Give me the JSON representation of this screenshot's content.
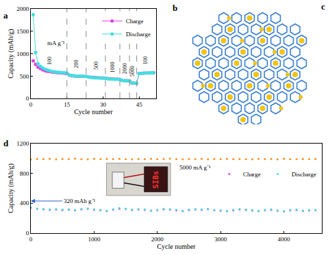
{
  "diagram": {
    "panel": "b"
  },
  "cropped_panel": {
    "panel": "c"
  },
  "chart_data": [
    {
      "panel": "a",
      "type": "line",
      "x_label": "Cycle number",
      "y_label": "Capacity (mAh/g)",
      "x": [
        1,
        2,
        3,
        4,
        5,
        6,
        7,
        8,
        9,
        10,
        11,
        12,
        13,
        14,
        15,
        16,
        17,
        18,
        19,
        20,
        21,
        22,
        23,
        24,
        25,
        26,
        27,
        28,
        29,
        30,
        31,
        32,
        33,
        34,
        35,
        36,
        37,
        38,
        39,
        40,
        41,
        42,
        43,
        44,
        45,
        46,
        47,
        48,
        49,
        50,
        51
      ],
      "series": [
        {
          "name": "Charge",
          "color": "#e040e0",
          "marker": "circle",
          "values": [
            840,
            760,
            700,
            670,
            640,
            620,
            610,
            600,
            590,
            585,
            580,
            575,
            570,
            565,
            560,
            520,
            510,
            505,
            500,
            500,
            498,
            495,
            495,
            480,
            475,
            470,
            468,
            465,
            462,
            460,
            458,
            445,
            440,
            438,
            435,
            432,
            430,
            405,
            400,
            398,
            395,
            350,
            345,
            340,
            560,
            565,
            568,
            570,
            572,
            575,
            578
          ]
        },
        {
          "name": "Discharge",
          "color": "#40e0e0",
          "marker": "circle",
          "values": [
            1870,
            1030,
            780,
            720,
            680,
            655,
            635,
            620,
            605,
            598,
            590,
            585,
            580,
            575,
            570,
            525,
            515,
            508,
            503,
            502,
            500,
            497,
            496,
            480,
            470,
            465,
            462,
            460,
            458,
            455,
            453,
            440,
            436,
            433,
            430,
            428,
            426,
            402,
            398,
            395,
            392,
            348,
            342,
            338,
            555,
            562,
            566,
            569,
            571,
            574,
            576
          ]
        }
      ],
      "xlim": [
        0,
        52
      ],
      "xticks": [
        0,
        15,
        30,
        45
      ],
      "ylim": [
        0,
        2000
      ],
      "yticks": [
        0,
        500,
        1000,
        1500,
        2000
      ],
      "legend": "upper right",
      "rate_unit": "mA g⁻¹",
      "rates": [
        "100",
        "200",
        "500",
        "1000",
        "2000",
        "5000",
        "100"
      ],
      "rate_boundaries": [
        15,
        23,
        31,
        37,
        41,
        44
      ]
    },
    {
      "panel": "d",
      "type": "scatter",
      "x_label": "Cycle number",
      "y_label": "Capacity (mAh/g)",
      "x": [
        0,
        100,
        200,
        300,
        400,
        500,
        600,
        700,
        800,
        900,
        1000,
        1100,
        1200,
        1300,
        1400,
        1500,
        1600,
        1700,
        1800,
        1900,
        2000,
        2100,
        2200,
        2300,
        2400,
        2500,
        2600,
        2700,
        2800,
        2900,
        3000,
        3100,
        3200,
        3300,
        3400,
        3500,
        3600,
        3700,
        3800,
        3900,
        4000,
        4100,
        4200,
        4300,
        4400,
        4500
      ],
      "series": [
        {
          "name": null,
          "color": "#ff8c1a",
          "marker": "circle",
          "values": [
            985,
            992,
            990,
            995,
            988,
            993,
            990,
            996,
            991,
            987,
            994,
            990,
            992,
            989,
            995,
            991,
            988,
            993,
            990,
            994,
            989,
            992,
            996,
            990,
            987,
            993,
            991,
            995,
            988,
            992,
            990,
            994,
            989,
            993,
            991,
            987,
            995,
            990,
            992,
            988,
            994,
            991,
            989,
            993,
            990,
            992
          ]
        },
        {
          "name": "Charge",
          "color": "#e040e0",
          "marker": "circle",
          "values": [
            338,
            324,
            318,
            312,
            316,
            309,
            314,
            304,
            318,
            324,
            312,
            306,
            294,
            314,
            328,
            322,
            309,
            316,
            312,
            299,
            306,
            318,
            314,
            304,
            294,
            309,
            316,
            312,
            320,
            306,
            299,
            292,
            304,
            316,
            309,
            302,
            294,
            306,
            312,
            299,
            290,
            304,
            309,
            296,
            302,
            306
          ]
        },
        {
          "name": "Discharge",
          "color": "#40e0e0",
          "marker": "circle",
          "values": [
            345,
            330,
            325,
            318,
            322,
            315,
            320,
            310,
            325,
            330,
            318,
            312,
            300,
            320,
            335,
            328,
            315,
            322,
            318,
            305,
            312,
            325,
            320,
            310,
            300,
            315,
            322,
            318,
            326,
            312,
            305,
            298,
            310,
            322,
            315,
            308,
            300,
            312,
            318,
            305,
            296,
            310,
            315,
            302,
            308,
            312
          ]
        }
      ],
      "xlim": [
        0,
        4600
      ],
      "xticks": [
        0,
        1000,
        2000,
        3000,
        4000
      ],
      "ylim": [
        0,
        1200
      ],
      "yticks": [
        0,
        400,
        800,
        1200
      ],
      "legend": "right",
      "annotations": [
        {
          "text": "5000 mA g⁻¹",
          "x": 2600,
          "y": 880
        },
        {
          "text": "320 mAh g⁻¹",
          "x": 500,
          "y": 430,
          "arrow_to_x": 0
        }
      ],
      "inset_text": "SIBs"
    }
  ]
}
